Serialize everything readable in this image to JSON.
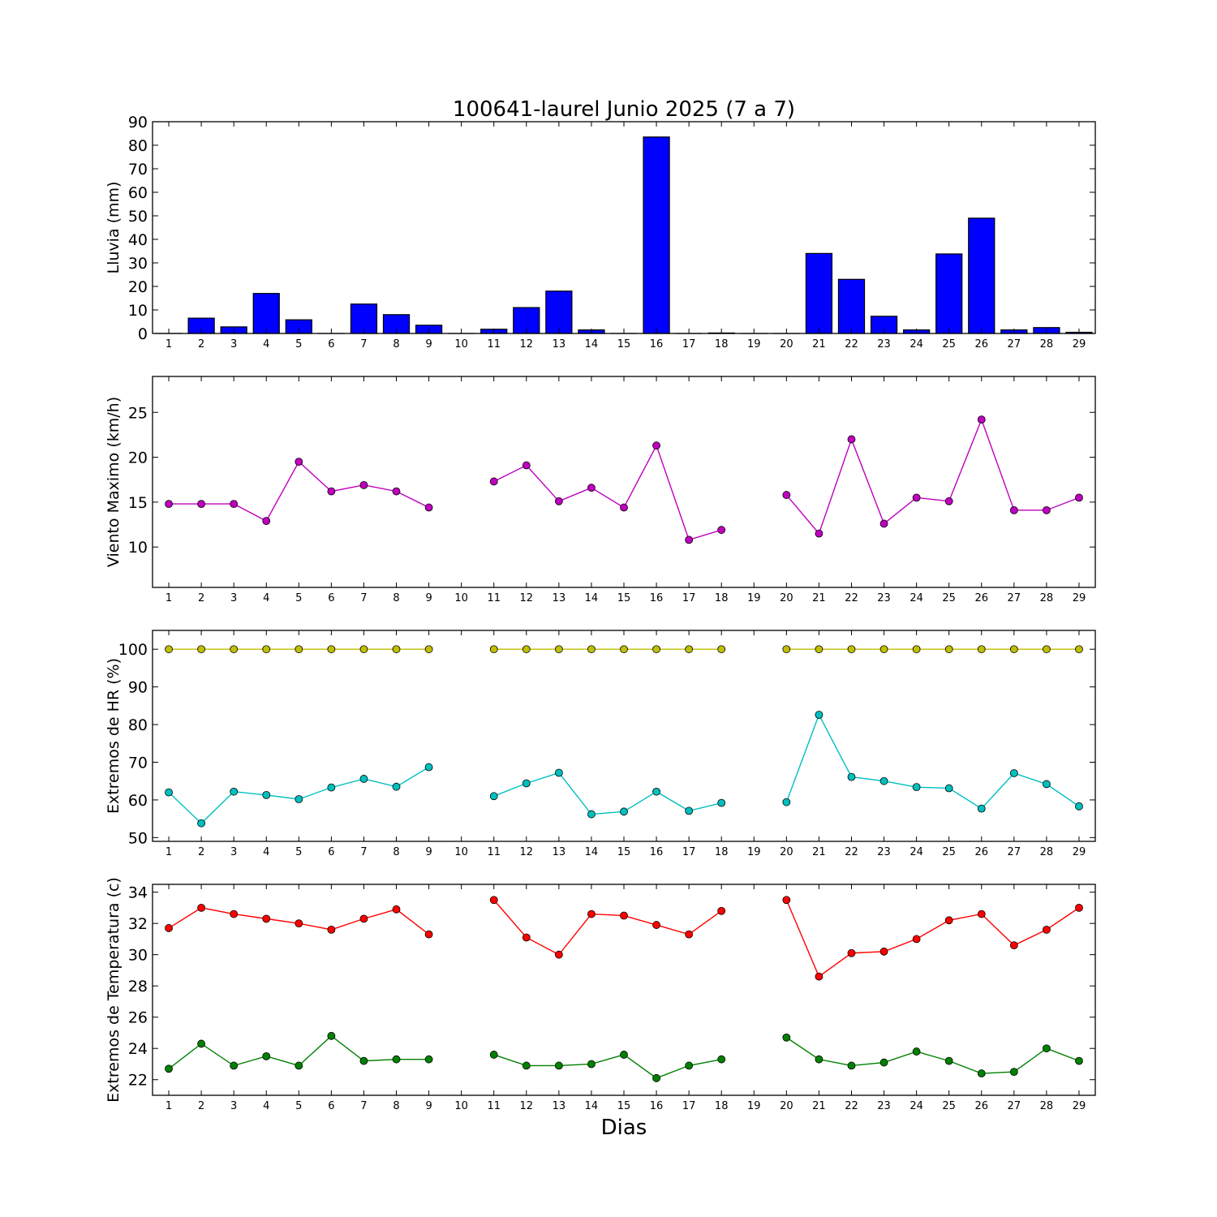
{
  "title": "100641-laurel Junio 2025  (7 a 7)",
  "xlabel": "Dias",
  "x_ticks": [
    "1",
    "2",
    "3",
    "4",
    "5",
    "6",
    "7",
    "8",
    "9",
    "10",
    "11",
    "12",
    "13",
    "14",
    "15",
    "16",
    "17",
    "18",
    "19",
    "20",
    "21",
    "22",
    "23",
    "24",
    "25",
    "26",
    "27",
    "28",
    "29"
  ],
  "chart_data": [
    {
      "type": "bar",
      "ylabel": "Lluvia (mm)",
      "ylim": [
        0,
        90
      ],
      "yticks": [
        0,
        10,
        20,
        30,
        40,
        50,
        60,
        70,
        80,
        90
      ],
      "categories": [
        "1",
        "2",
        "3",
        "4",
        "5",
        "6",
        "7",
        "8",
        "9",
        "10",
        "11",
        "12",
        "13",
        "14",
        "15",
        "16",
        "17",
        "18",
        "19",
        "20",
        "21",
        "22",
        "23",
        "24",
        "25",
        "26",
        "27",
        "28",
        "29"
      ],
      "series": [
        {
          "color": "#0000ff",
          "values": [
            0.0,
            6.5,
            2.8,
            17.0,
            5.8,
            0.0,
            12.5,
            8.0,
            3.5,
            0.0,
            1.8,
            11.0,
            18.0,
            1.5,
            0.0,
            83.5,
            0.0,
            0.2,
            0.0,
            0.0,
            34.0,
            23.0,
            7.3,
            1.5,
            33.8,
            49.0,
            1.5,
            2.5,
            0.5
          ]
        }
      ]
    },
    {
      "type": "line",
      "ylabel": "Viento Maximo (km/h)",
      "ylim": [
        5.5,
        29
      ],
      "yticks": [
        10,
        15,
        20,
        25
      ],
      "x": [
        1,
        2,
        3,
        4,
        5,
        6,
        7,
        8,
        9,
        10,
        11,
        12,
        13,
        14,
        15,
        16,
        17,
        18,
        19,
        20,
        21,
        22,
        23,
        24,
        25,
        26,
        27,
        28,
        29
      ],
      "series": [
        {
          "color": "#bf00bf",
          "values": [
            14.8,
            14.8,
            14.8,
            12.9,
            19.5,
            16.2,
            16.9,
            16.2,
            14.4,
            null,
            17.3,
            19.1,
            15.1,
            16.6,
            14.4,
            21.3,
            10.8,
            11.9,
            null,
            15.8,
            11.5,
            22.0,
            12.6,
            15.5,
            15.1,
            24.2,
            14.1,
            14.1,
            15.5
          ]
        }
      ]
    },
    {
      "type": "line",
      "ylabel": "Extremos de HR (%)",
      "ylim": [
        49,
        105
      ],
      "yticks": [
        50,
        60,
        70,
        80,
        90,
        100
      ],
      "x": [
        1,
        2,
        3,
        4,
        5,
        6,
        7,
        8,
        9,
        10,
        11,
        12,
        13,
        14,
        15,
        16,
        17,
        18,
        19,
        20,
        21,
        22,
        23,
        24,
        25,
        26,
        27,
        28,
        29
      ],
      "series": [
        {
          "color": "#bfbf00",
          "values": [
            100,
            100,
            100,
            100,
            100,
            100,
            100,
            100,
            100,
            null,
            100,
            100,
            100,
            100,
            100,
            100,
            100,
            100,
            null,
            100,
            100,
            100,
            100,
            100,
            100,
            100,
            100,
            100,
            100
          ]
        },
        {
          "color": "#00bfbf",
          "values": [
            62.0,
            53.8,
            62.2,
            61.3,
            60.2,
            63.3,
            65.6,
            63.5,
            68.7,
            null,
            61.0,
            64.4,
            67.2,
            56.2,
            56.9,
            62.2,
            57.1,
            59.2,
            null,
            59.4,
            82.6,
            66.1,
            65.0,
            63.4,
            63.1,
            57.7,
            67.1,
            64.2,
            58.3
          ]
        }
      ]
    },
    {
      "type": "line",
      "ylabel": "Extremos de Temperatura (c)",
      "ylim": [
        21,
        34.5
      ],
      "yticks": [
        22,
        24,
        26,
        28,
        30,
        32,
        34
      ],
      "x": [
        1,
        2,
        3,
        4,
        5,
        6,
        7,
        8,
        9,
        10,
        11,
        12,
        13,
        14,
        15,
        16,
        17,
        18,
        19,
        20,
        21,
        22,
        23,
        24,
        25,
        26,
        27,
        28,
        29
      ],
      "series": [
        {
          "color": "#ff0000",
          "values": [
            31.7,
            33.0,
            32.6,
            32.3,
            32.0,
            31.6,
            32.3,
            32.9,
            31.3,
            null,
            33.5,
            31.1,
            30.0,
            32.6,
            32.5,
            31.9,
            31.3,
            32.8,
            null,
            33.5,
            28.6,
            30.1,
            30.2,
            31.0,
            32.2,
            32.6,
            30.6,
            31.6,
            33.0
          ]
        },
        {
          "color": "#008000",
          "values": [
            22.7,
            24.3,
            22.9,
            23.5,
            22.9,
            24.8,
            23.2,
            23.3,
            23.3,
            null,
            23.6,
            22.9,
            22.9,
            23.0,
            23.6,
            22.1,
            22.9,
            23.3,
            null,
            24.7,
            23.3,
            22.9,
            23.1,
            23.8,
            23.2,
            22.4,
            22.5,
            24.0,
            23.2
          ]
        }
      ]
    }
  ]
}
